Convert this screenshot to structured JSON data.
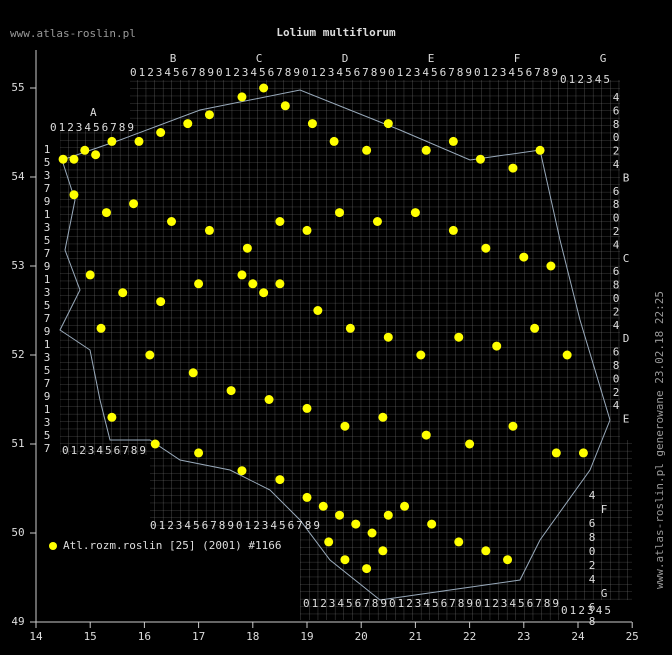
{
  "header": {
    "site": "www.atlas-roslin.pl",
    "title": "Lolium multiflorum",
    "generated": "www.atlas-roslin.pl generowane 23.02.18 22:25"
  },
  "legend": {
    "label": "Atl.rozm.roslin [25] (2001) #1166",
    "color": "#ffff00"
  },
  "axes": {
    "xticks": [
      14,
      15,
      16,
      17,
      18,
      19,
      20,
      21,
      22,
      23,
      24,
      25
    ],
    "yticks": [
      49,
      50,
      51,
      52,
      53,
      54,
      55
    ],
    "xlim": [
      14,
      25
    ],
    "ylim": [
      49,
      55.4
    ]
  },
  "grid_labels": {
    "digits": "0123456789",
    "short_digits": "012345",
    "top_letters": [
      "B",
      "C",
      "D",
      "E",
      "F",
      "G"
    ],
    "left_letter": "A",
    "left_numbers": [
      "1",
      "5",
      "3",
      "7",
      "9",
      "1",
      "3",
      "5",
      "7",
      "9",
      "1",
      "3",
      "5",
      "7",
      "9",
      "1",
      "3",
      "5",
      "7",
      "9",
      "1",
      "3",
      "5",
      "7"
    ],
    "right_labels": [
      "4",
      "6",
      "8",
      "0",
      "2",
      "4",
      "B",
      "6",
      "8",
      "0",
      "2",
      "4",
      "C",
      "6",
      "8",
      "0",
      "2",
      "4",
      "D",
      "6",
      "8",
      "0",
      "2",
      "4",
      "E"
    ],
    "lower_right": [
      "4",
      "F",
      "6",
      "8",
      "0",
      "2",
      "4",
      "G",
      "6",
      "8"
    ]
  },
  "points": [
    [
      14.5,
      54.2
    ],
    [
      14.7,
      54.2
    ],
    [
      14.9,
      54.3
    ],
    [
      15.1,
      54.25
    ],
    [
      15.4,
      54.4
    ],
    [
      15.9,
      54.4
    ],
    [
      16.3,
      54.5
    ],
    [
      16.8,
      54.6
    ],
    [
      17.2,
      54.7
    ],
    [
      17.8,
      54.9
    ],
    [
      18.2,
      55.0
    ],
    [
      18.6,
      54.8
    ],
    [
      19.1,
      54.6
    ],
    [
      19.5,
      54.4
    ],
    [
      20.1,
      54.3
    ],
    [
      20.5,
      54.6
    ],
    [
      21.2,
      54.3
    ],
    [
      21.7,
      54.4
    ],
    [
      22.2,
      54.2
    ],
    [
      22.8,
      54.1
    ],
    [
      23.3,
      54.3
    ],
    [
      14.7,
      53.8
    ],
    [
      15.3,
      53.6
    ],
    [
      15.8,
      53.7
    ],
    [
      16.5,
      53.5
    ],
    [
      17.2,
      53.4
    ],
    [
      17.9,
      53.2
    ],
    [
      18.5,
      53.5
    ],
    [
      19.0,
      53.4
    ],
    [
      19.6,
      53.6
    ],
    [
      20.3,
      53.5
    ],
    [
      21.0,
      53.6
    ],
    [
      21.7,
      53.4
    ],
    [
      22.3,
      53.2
    ],
    [
      23.0,
      53.1
    ],
    [
      23.5,
      53.0
    ],
    [
      15.0,
      52.9
    ],
    [
      15.6,
      52.7
    ],
    [
      16.3,
      52.6
    ],
    [
      17.0,
      52.8
    ],
    [
      17.8,
      52.9
    ],
    [
      18.0,
      52.8
    ],
    [
      18.2,
      52.7
    ],
    [
      18.5,
      52.8
    ],
    [
      19.2,
      52.5
    ],
    [
      19.8,
      52.3
    ],
    [
      20.5,
      52.2
    ],
    [
      21.1,
      52.0
    ],
    [
      21.8,
      52.2
    ],
    [
      22.5,
      52.1
    ],
    [
      23.2,
      52.3
    ],
    [
      23.8,
      52.0
    ],
    [
      15.2,
      52.3
    ],
    [
      16.1,
      52.0
    ],
    [
      16.9,
      51.8
    ],
    [
      17.6,
      51.6
    ],
    [
      18.3,
      51.5
    ],
    [
      19.0,
      51.4
    ],
    [
      19.7,
      51.2
    ],
    [
      20.4,
      51.3
    ],
    [
      21.2,
      51.1
    ],
    [
      22.0,
      51.0
    ],
    [
      22.8,
      51.2
    ],
    [
      23.6,
      50.9
    ],
    [
      24.1,
      50.9
    ],
    [
      15.4,
      51.3
    ],
    [
      16.2,
      51.0
    ],
    [
      17.0,
      50.9
    ],
    [
      17.8,
      50.7
    ],
    [
      18.5,
      50.6
    ],
    [
      19.0,
      50.4
    ],
    [
      19.3,
      50.3
    ],
    [
      19.6,
      50.2
    ],
    [
      19.9,
      50.1
    ],
    [
      20.2,
      50.0
    ],
    [
      20.5,
      50.2
    ],
    [
      20.8,
      50.3
    ],
    [
      21.3,
      50.1
    ],
    [
      21.8,
      49.9
    ],
    [
      22.3,
      49.8
    ],
    [
      22.7,
      49.7
    ],
    [
      19.7,
      49.7
    ],
    [
      20.1,
      49.6
    ],
    [
      20.4,
      49.8
    ],
    [
      19.4,
      49.9
    ]
  ]
}
